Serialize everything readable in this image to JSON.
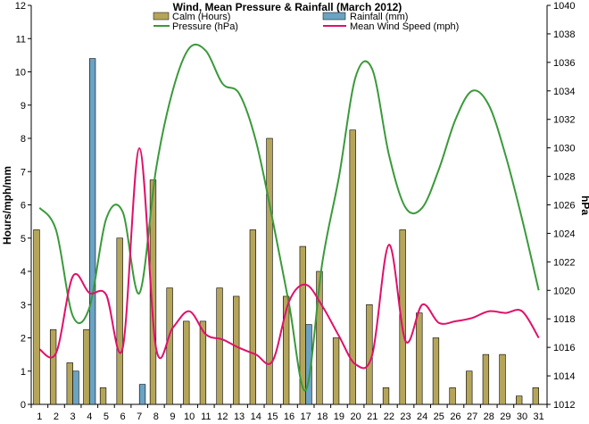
{
  "chart_data": {
    "type": "bar",
    "title": "Wind, Mean Pressure & Rainfall (March 2012)",
    "ylabel_left": "Hours/mph/mm",
    "ylabel_right": "hPa",
    "ylim_left": [
      0,
      12
    ],
    "ylim_right": [
      1012,
      1040
    ],
    "left_ticks": [
      0,
      1,
      2,
      3,
      4,
      5,
      6,
      7,
      8,
      9,
      10,
      11,
      12
    ],
    "right_ticks": [
      1012,
      1014,
      1016,
      1018,
      1020,
      1022,
      1024,
      1026,
      1028,
      1030,
      1032,
      1034,
      1036,
      1038,
      1040
    ],
    "categories": [
      "1",
      "2",
      "3",
      "4",
      "5",
      "6",
      "7",
      "8",
      "9",
      "10",
      "11",
      "12",
      "13",
      "14",
      "15",
      "16",
      "17",
      "18",
      "19",
      "20",
      "21",
      "22",
      "23",
      "24",
      "25",
      "26",
      "27",
      "28",
      "29",
      "30",
      "31"
    ],
    "grid": false,
    "legend_position": "top",
    "series": [
      {
        "name": "Calm (Hours)",
        "kind": "bar",
        "axis": "left",
        "color": "#b5a55a",
        "values": [
          5.25,
          2.25,
          1.25,
          2.25,
          0.5,
          5.0,
          0,
          6.75,
          3.5,
          2.5,
          2.5,
          3.5,
          3.25,
          5.25,
          8.0,
          3.25,
          4.75,
          4.0,
          2.0,
          8.25,
          3.0,
          0.5,
          5.25,
          2.75,
          2.0,
          0.5,
          1.0,
          1.5,
          1.5,
          0.25,
          0.5
        ]
      },
      {
        "name": "Rainfall (mm)",
        "kind": "bar",
        "axis": "left",
        "color": "#6aa3c4",
        "values": [
          0,
          0,
          1.0,
          10.4,
          0,
          0,
          0.6,
          0,
          0,
          0,
          0,
          0,
          0,
          0,
          0,
          0,
          2.4,
          0,
          0,
          0,
          0,
          0,
          0,
          0,
          0,
          0,
          0,
          0,
          0,
          0,
          0
        ]
      },
      {
        "name": "Pressure (hPa)",
        "kind": "line",
        "axis": "right",
        "color": "#3a9a3a",
        "values": [
          1025.8,
          1024.2,
          1018.2,
          1018.8,
          1025.0,
          1025.5,
          1019.8,
          1028.5,
          1034.0,
          1037.0,
          1036.8,
          1034.5,
          1033.8,
          1030.5,
          1025.0,
          1019.0,
          1013.0,
          1022.0,
          1028.0,
          1035.0,
          1035.5,
          1029.5,
          1025.8,
          1025.8,
          1028.5,
          1032.0,
          1034.0,
          1033.0,
          1029.5,
          1025.0,
          1020.0
        ]
      },
      {
        "name": "Mean Wind Speed (mph)",
        "kind": "line",
        "axis": "left",
        "color": "#e0106a",
        "values": [
          1.65,
          1.55,
          3.85,
          3.35,
          3.3,
          1.7,
          7.7,
          1.7,
          2.3,
          2.8,
          2.1,
          1.95,
          1.7,
          1.5,
          1.3,
          3.1,
          3.6,
          2.95,
          2.05,
          1.2,
          1.5,
          4.8,
          1.9,
          3.0,
          2.45,
          2.5,
          2.6,
          2.8,
          2.75,
          2.8,
          2.0
        ]
      }
    ]
  }
}
